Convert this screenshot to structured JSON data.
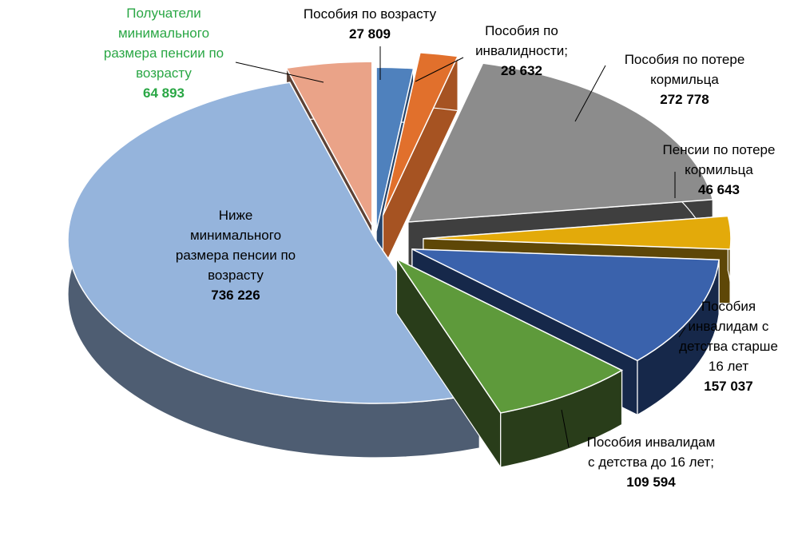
{
  "chart_data": {
    "type": "pie",
    "style": "3d-exploded",
    "title": "",
    "slices": [
      {
        "label_lines": [
          "Пособия по возрасту"
        ],
        "value_text": "27 809",
        "value": 27809,
        "color": "#4f81bd",
        "side_color": "#27456b",
        "label_color": "#000000"
      },
      {
        "label_lines": [
          "Пособия по",
          "инвалидности;"
        ],
        "value_text": "28 632",
        "value": 28632,
        "color": "#e1702c",
        "side_color": "#a65322",
        "label_color": "#000000"
      },
      {
        "label_lines": [
          "Пособия по потере",
          "кормильца"
        ],
        "value_text": "272 778",
        "value": 272778,
        "color": "#8c8c8c",
        "side_color": "#3f3f3f",
        "label_color": "#000000"
      },
      {
        "label_lines": [
          "Пенсии по потере",
          "кормильца"
        ],
        "value_text": "46 643",
        "value": 46643,
        "color": "#e3aa0a",
        "side_color": "#5e4707",
        "label_color": "#000000"
      },
      {
        "label_lines": [
          "Пособия",
          "инвалидам с",
          "детства старше",
          "16 лет"
        ],
        "value_text": "157 037",
        "value": 157037,
        "color": "#3a62ac",
        "side_color": "#16284a",
        "label_color": "#000000"
      },
      {
        "label_lines": [
          "Пособия инвалидам",
          "с детства до 16 лет;"
        ],
        "value_text": "109 594",
        "value": 109594,
        "color": "#5e9a3b",
        "side_color": "#293d1a",
        "label_color": "#000000"
      },
      {
        "label_lines": [
          "Ниже",
          "минимального",
          "размера пенсии по",
          "возрасту"
        ],
        "value_text": "736 226",
        "value": 736226,
        "color": "#95b4dc",
        "side_color": "#4e5d72",
        "label_color": "#000000"
      },
      {
        "label_lines": [
          "Получатели",
          "минимального",
          "размера пенсии по",
          "возрасту"
        ],
        "value_text": "64 893",
        "value": 64893,
        "color": "#eaa388",
        "side_color": "#5d4236",
        "label_color": "#2aa745"
      }
    ]
  }
}
